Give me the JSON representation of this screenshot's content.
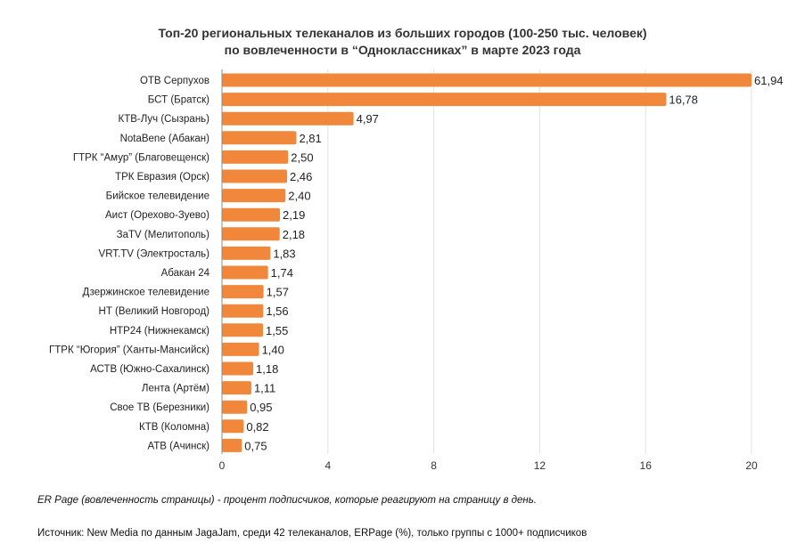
{
  "header": {
    "title_line1": "Топ-20 региональных телеканалов из больших городов (100-250 тыс. человек)",
    "title_line2": "по вовлеченности в “Одноклассниках” в марте 2023 года"
  },
  "footer": {
    "note": "ER Page (вовлеченность страницы) - процент подписчиков, которые реагируют на страницу в день.",
    "source": "Источник: New Media по данным JagaJam, среди 42 телеканалов, ERPage (%), только группы с 1000+ подписчиков"
  },
  "colors": {
    "bar": "#F0873A",
    "axis": "#888888",
    "grid": "#e3e3e3"
  },
  "chart_data": {
    "type": "bar",
    "orientation": "horizontal",
    "categories": [
      "ОТВ Серпухов",
      "БСТ (Братск)",
      "КТВ-Луч (Сызрань)",
      "NotaBene (Абакан)",
      "ГТРК “Амур” (Благовещенск)",
      "ТРК Евразия (Орск)",
      "Бийское телевидение",
      "Аист (Орехово-Зуево)",
      "ЗаTV (Мелитополь)",
      "VRT.TV (Электросталь)",
      "Абакан 24",
      "Дзержинское телевидение",
      "НТ (Великий Новгород)",
      "НТР24 (Нижнекамск)",
      "ГТРК “Югория” (Ханты-Мансийск)",
      "АСТВ (Южно-Сахалинск)",
      "Лента (Артём)",
      "Свое ТВ (Березники)",
      "КТВ (Коломна)",
      "АТВ (Ачинск)"
    ],
    "values": [
      61.94,
      16.78,
      4.97,
      2.81,
      2.5,
      2.46,
      2.4,
      2.19,
      2.18,
      1.83,
      1.74,
      1.57,
      1.56,
      1.55,
      1.4,
      1.18,
      1.11,
      0.95,
      0.82,
      0.75
    ],
    "value_labels": [
      "61,94",
      "16,78",
      "4,97",
      "2,81",
      "2,50",
      "2,46",
      "2,40",
      "2,19",
      "2,18",
      "1,83",
      "1,74",
      "1,57",
      "1,56",
      "1,55",
      "1,40",
      "1,18",
      "1,11",
      "0,95",
      "0,82",
      "0,75"
    ],
    "xlim": [
      0,
      20
    ],
    "xticks": [
      0,
      4,
      8,
      12,
      16,
      20
    ],
    "xlabel": "",
    "ylabel": "",
    "grid": "vertical",
    "legend": "none",
    "note": "Axis is truncated at 20; bars exceeding the range are clipped at the axis maximum."
  }
}
